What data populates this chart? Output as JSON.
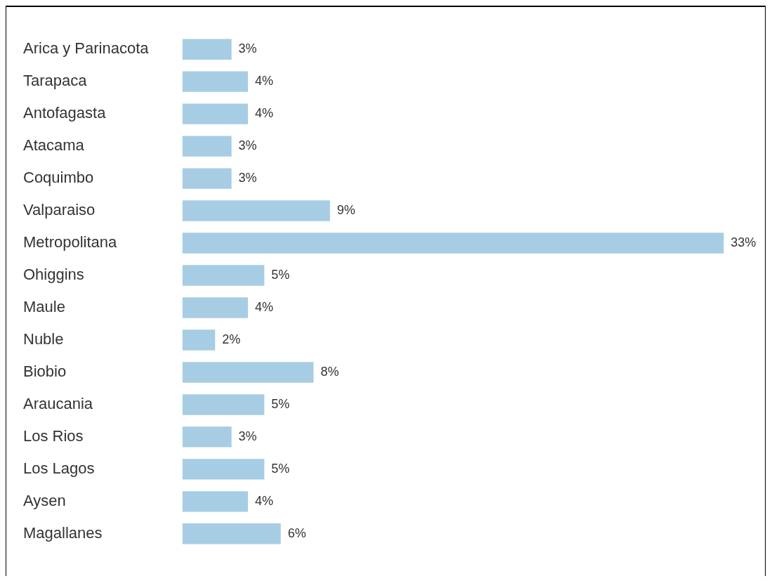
{
  "chart_data": {
    "type": "bar",
    "orientation": "horizontal",
    "categories": [
      "Arica y Parinacota",
      "Tarapaca",
      "Antofagasta",
      "Atacama",
      "Coquimbo",
      "Valparaiso",
      "Metropolitana",
      "Ohiggins",
      "Maule",
      "Nuble",
      "Biobio",
      "Araucania",
      "Los Rios",
      "Los Lagos",
      "Aysen",
      "Magallanes"
    ],
    "values": [
      3,
      4,
      4,
      3,
      3,
      9,
      33,
      5,
      4,
      2,
      8,
      5,
      3,
      5,
      4,
      6
    ],
    "value_labels": [
      "3%",
      "4%",
      "4%",
      "3%",
      "3%",
      "9%",
      "33%",
      "5%",
      "4%",
      "2%",
      "8%",
      "5%",
      "3%",
      "5%",
      "4%",
      "6%"
    ],
    "color": "#a6cde3",
    "legend": false
  }
}
